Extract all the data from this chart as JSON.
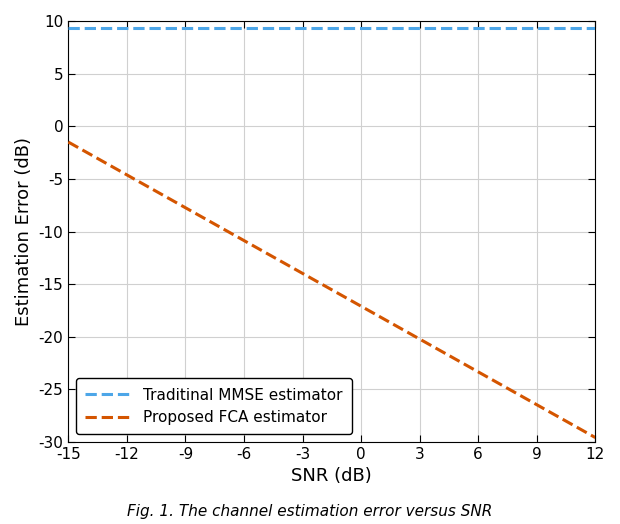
{
  "title": "",
  "xlabel": "SNR (dB)",
  "ylabel": "Estimation Error (dB)",
  "caption": "Fig. 1. The channel estimation error versus SNR",
  "xlim": [
    -15,
    12
  ],
  "ylim": [
    -30,
    10
  ],
  "xticks": [
    -15,
    -12,
    -9,
    -6,
    -3,
    0,
    3,
    6,
    9,
    12
  ],
  "yticks": [
    -30,
    -25,
    -20,
    -15,
    -10,
    -5,
    0,
    5,
    10
  ],
  "mmse_y": 9.3,
  "mmse_color": "#4DA6E8",
  "mmse_label": "Traditinal MMSE estimator",
  "fca_slope": -1.04,
  "fca_intercept": -17.1,
  "fca_color": "#D45500",
  "fca_label": "Proposed FCA estimator",
  "grid_color": "#D0D0D0",
  "bg_color": "#FFFFFF",
  "legend_loc": "lower left",
  "figsize": [
    6.2,
    5.24
  ],
  "dpi": 100,
  "tick_fontsize": 11,
  "label_fontsize": 13,
  "legend_fontsize": 11,
  "caption_fontsize": 11
}
